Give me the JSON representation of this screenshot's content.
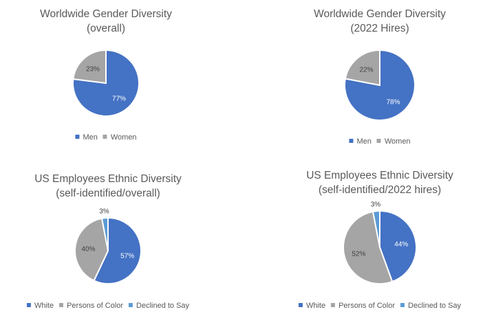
{
  "chart_data": [
    {
      "type": "pie",
      "title": [
        "Worldwide Gender Diversity",
        "(overall)"
      ],
      "categories": [
        "Men",
        "Women"
      ],
      "values": [
        77,
        23
      ],
      "labels": [
        "77%",
        "23%"
      ],
      "colors": [
        "#4472C4",
        "#A5A5A5"
      ],
      "legend": "bottom"
    },
    {
      "type": "pie",
      "title": [
        "Worldwide Gender Diversity",
        "(2022 Hires)"
      ],
      "categories": [
        "Men",
        "Women"
      ],
      "values": [
        78,
        22
      ],
      "labels": [
        "78%",
        "22%"
      ],
      "colors": [
        "#4472C4",
        "#A5A5A5"
      ],
      "legend": "bottom"
    },
    {
      "type": "pie",
      "title": [
        "US Employees Ethnic Diversity",
        "(self-identified/overall)"
      ],
      "categories": [
        "White",
        "Persons of Color",
        "Declined to Say"
      ],
      "values": [
        57,
        40,
        3
      ],
      "labels": [
        "57%",
        "40%",
        "3%"
      ],
      "colors": [
        "#4472C4",
        "#A5A5A5",
        "#5B9BD5"
      ],
      "legend": "bottom"
    },
    {
      "type": "pie",
      "title": [
        "US Employees Ethnic Diversity",
        "(self-identified/2022 hires)"
      ],
      "categories": [
        "White",
        "Persons of Color",
        "Declined to Say"
      ],
      "values": [
        44,
        52,
        3
      ],
      "labels": [
        "44%",
        "52%",
        "3%"
      ],
      "colors": [
        "#4472C4",
        "#A5A5A5",
        "#5B9BD5"
      ],
      "legend": "bottom"
    }
  ]
}
